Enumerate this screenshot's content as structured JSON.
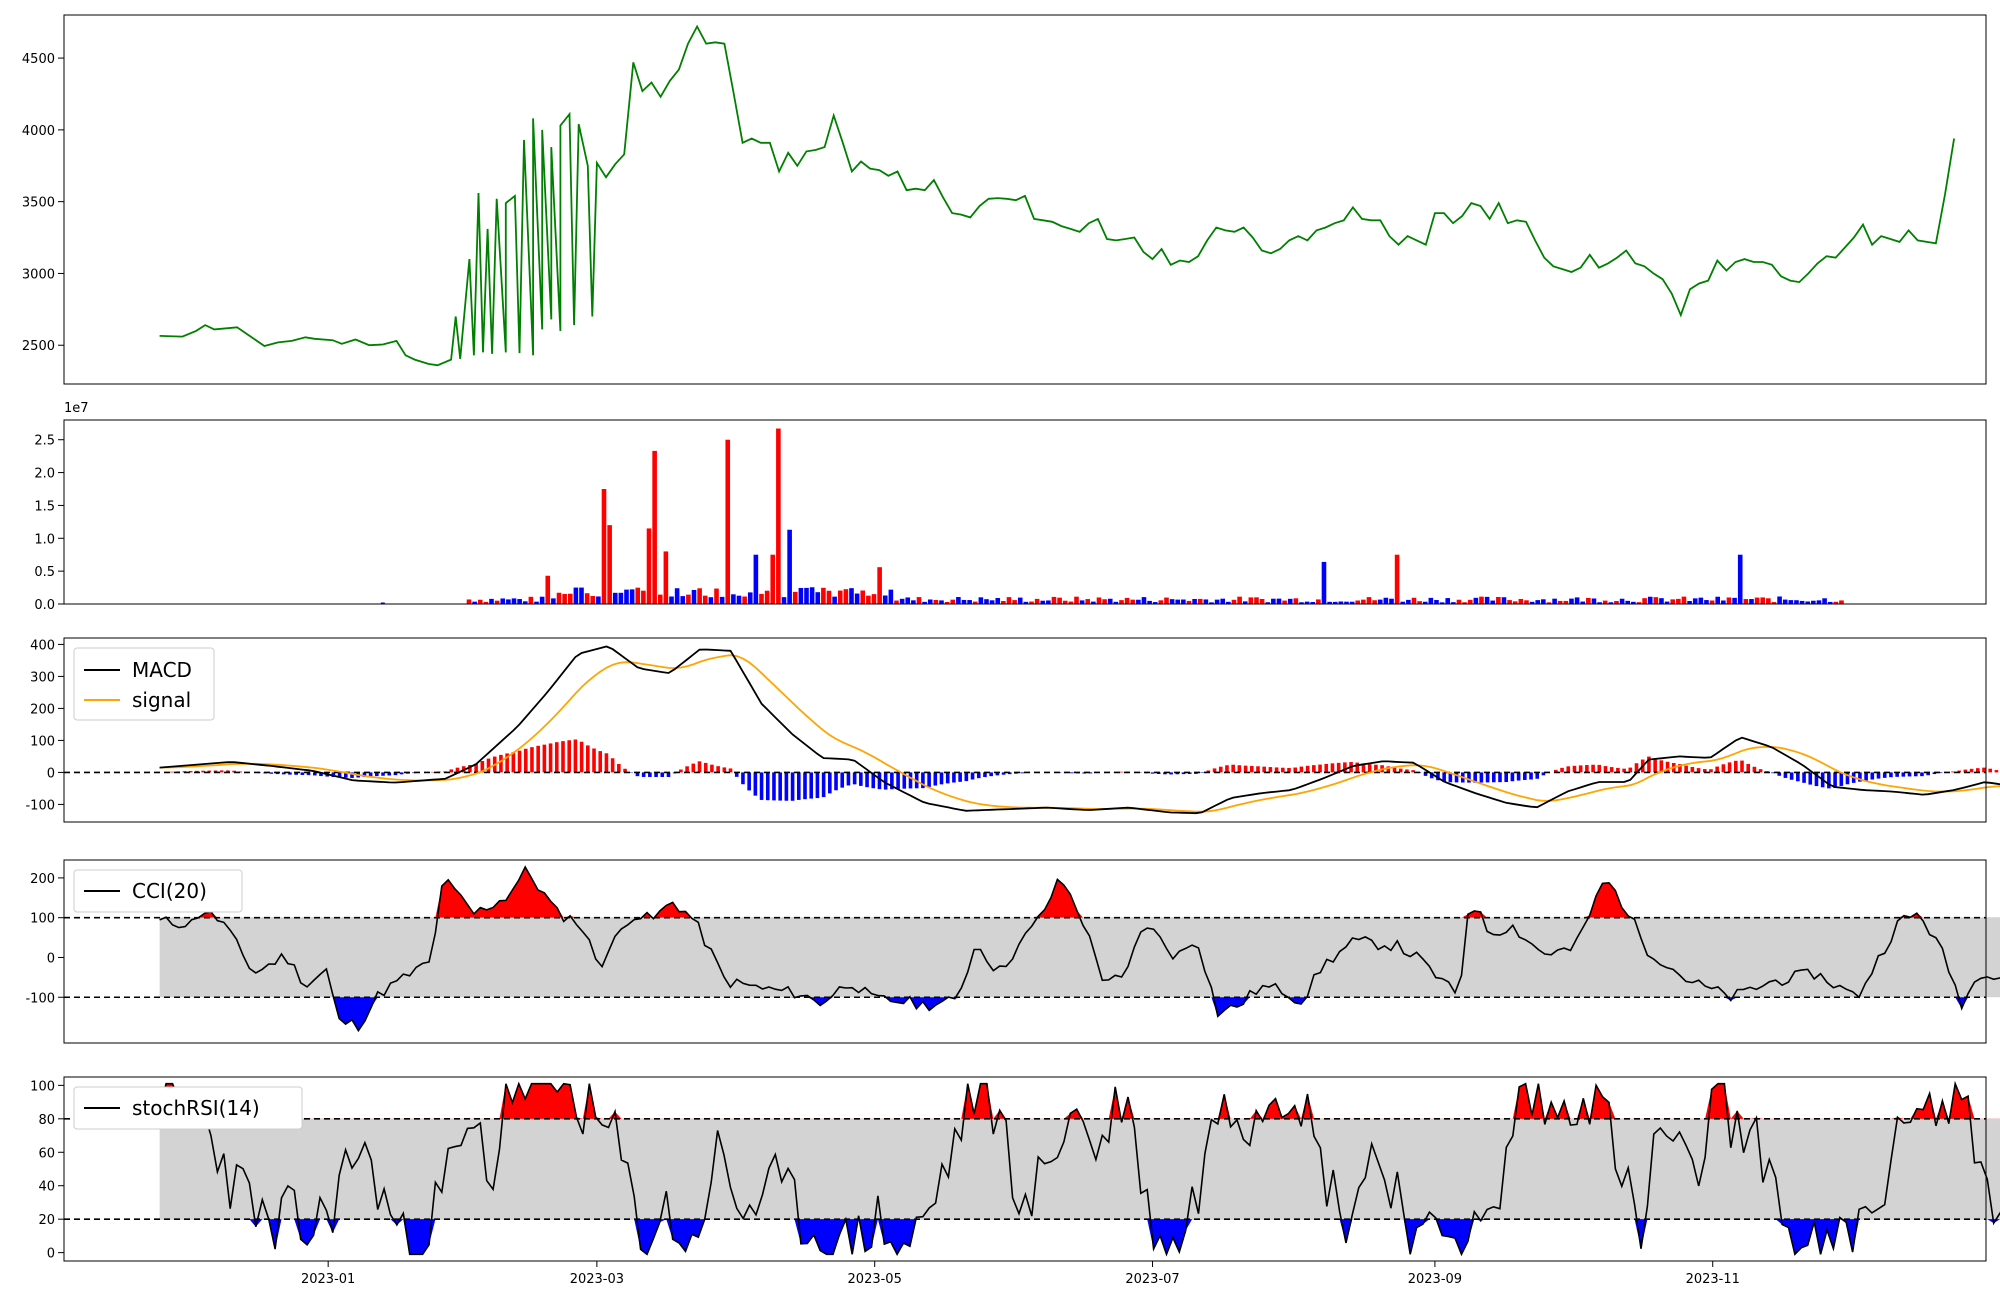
{
  "chart_data": {
    "type": "line",
    "date_ticks": [
      "2023-01",
      "2023-03",
      "2023-05",
      "2023-07",
      "2023-09",
      "2023-11"
    ],
    "x_range": [
      "2022-11-04",
      "2023-12-31"
    ],
    "panels": [
      {
        "id": "price",
        "type": "line",
        "color": "#008000",
        "ylim": [
          2230,
          4800
        ],
        "yticks": [
          2500,
          3000,
          3500,
          4000,
          4500
        ],
        "series": [
          {
            "name": "",
            "color": "#008000",
            "points": [
              [
                "2022-11-25",
                2565
              ],
              [
                "2022-11-30",
                2560
              ],
              [
                "2022-12-03",
                2600
              ],
              [
                "2022-12-05",
                2640
              ],
              [
                "2022-12-07",
                2610
              ],
              [
                "2022-12-12",
                2625
              ],
              [
                "2022-12-15",
                2560
              ],
              [
                "2022-12-18",
                2495
              ],
              [
                "2022-12-21",
                2520
              ],
              [
                "2022-12-24",
                2530
              ],
              [
                "2022-12-27",
                2555
              ],
              [
                "2022-12-29",
                2545
              ],
              [
                "2023-01-02",
                2535
              ],
              [
                "2023-01-04",
                2510
              ],
              [
                "2023-01-07",
                2540
              ],
              [
                "2023-01-10",
                2500
              ],
              [
                "2023-01-13",
                2505
              ],
              [
                "2023-01-16",
                2530
              ],
              [
                "2023-01-18",
                2430
              ],
              [
                "2023-01-20",
                2400
              ],
              [
                "2023-01-23",
                2370
              ],
              [
                "2023-01-25",
                2360
              ],
              [
                "2023-01-28",
                2400
              ],
              [
                "2023-01-30",
                2405
              ],
              [
                "2023-02-02",
                2430
              ],
              [
                "2023-02-04",
                2450
              ],
              [
                "2023-02-06",
                2440
              ],
              [
                "2023-02-09",
                2450
              ],
              [
                "2023-02-12",
                2445
              ],
              [
                "2023-02-15",
                2430
              ],
              [
                "2023-02-17",
                2610
              ],
              [
                "2023-02-19",
                2680
              ],
              [
                "2023-02-21",
                2600
              ],
              [
                "2023-02-24",
                2640
              ],
              [
                "2023-02-28",
                2700
              ],
              [
                "2023-01-29",
                2700
              ],
              [
                "2023-02-01",
                3100
              ],
              [
                "2023-02-03",
                3560
              ],
              [
                "2023-02-05",
                3310
              ],
              [
                "2023-02-07",
                3520
              ],
              [
                "2023-02-09",
                3490
              ],
              [
                "2023-02-11",
                3540
              ],
              [
                "2023-02-13",
                3930
              ],
              [
                "2023-02-15",
                4080
              ],
              [
                "2023-02-17",
                4000
              ],
              [
                "2023-02-19",
                3880
              ],
              [
                "2023-02-21",
                4030
              ],
              [
                "2023-02-23",
                4110
              ],
              [
                "2023-02-25",
                4040
              ],
              [
                "2023-02-27",
                3750
              ],
              [
                "2023-03-01",
                3770
              ],
              [
                "2023-03-03",
                3670
              ],
              [
                "2023-03-05",
                3760
              ],
              [
                "2023-03-07",
                3830
              ],
              [
                "2023-03-09",
                4470
              ],
              [
                "2023-03-11",
                4270
              ],
              [
                "2023-03-13",
                4330
              ],
              [
                "2023-03-15",
                4230
              ],
              [
                "2023-03-17",
                4340
              ],
              [
                "2023-03-19",
                4420
              ],
              [
                "2023-03-21",
                4600
              ],
              [
                "2023-03-23",
                4720
              ],
              [
                "2023-03-25",
                4600
              ],
              [
                "2023-03-27",
                4610
              ],
              [
                "2023-03-29",
                4600
              ],
              [
                "2023-03-31",
                4260
              ],
              [
                "2023-04-02",
                3910
              ],
              [
                "2023-04-04",
                3940
              ],
              [
                "2023-04-06",
                3910
              ],
              [
                "2023-04-08",
                3910
              ],
              [
                "2023-04-10",
                3710
              ],
              [
                "2023-04-12",
                3840
              ],
              [
                "2023-04-14",
                3750
              ],
              [
                "2023-04-16",
                3850
              ],
              [
                "2023-04-18",
                3860
              ],
              [
                "2023-04-20",
                3880
              ],
              [
                "2023-04-22",
                4100
              ],
              [
                "2023-04-24",
                3910
              ],
              [
                "2023-04-26",
                3710
              ],
              [
                "2023-04-28",
                3780
              ],
              [
                "2023-04-30",
                3730
              ],
              [
                "2023-05-02",
                3720
              ],
              [
                "2023-05-04",
                3680
              ],
              [
                "2023-05-06",
                3710
              ],
              [
                "2023-05-08",
                3580
              ],
              [
                "2023-05-10",
                3590
              ],
              [
                "2023-05-12",
                3580
              ],
              [
                "2023-05-14",
                3650
              ],
              [
                "2023-05-16",
                3530
              ],
              [
                "2023-05-18",
                3420
              ],
              [
                "2023-05-20",
                3410
              ],
              [
                "2023-05-22",
                3390
              ],
              [
                "2023-05-24",
                3470
              ],
              [
                "2023-05-26",
                3520
              ],
              [
                "2023-05-28",
                3525
              ],
              [
                "2023-05-30",
                3520
              ],
              [
                "2023-06-01",
                3510
              ],
              [
                "2023-06-03",
                3540
              ],
              [
                "2023-06-05",
                3380
              ],
              [
                "2023-06-07",
                3370
              ],
              [
                "2023-06-09",
                3360
              ],
              [
                "2023-06-11",
                3330
              ],
              [
                "2023-06-13",
                3310
              ],
              [
                "2023-06-15",
                3290
              ],
              [
                "2023-06-17",
                3350
              ],
              [
                "2023-06-19",
                3380
              ],
              [
                "2023-06-21",
                3240
              ],
              [
                "2023-06-23",
                3230
              ],
              [
                "2023-06-25",
                3240
              ],
              [
                "2023-06-27",
                3250
              ],
              [
                "2023-06-29",
                3150
              ],
              [
                "2023-07-01",
                3100
              ],
              [
                "2023-07-03",
                3170
              ],
              [
                "2023-07-05",
                3060
              ],
              [
                "2023-07-07",
                3090
              ],
              [
                "2023-07-09",
                3080
              ],
              [
                "2023-07-11",
                3120
              ],
              [
                "2023-07-13",
                3230
              ],
              [
                "2023-07-15",
                3320
              ],
              [
                "2023-07-17",
                3300
              ],
              [
                "2023-07-19",
                3290
              ],
              [
                "2023-07-21",
                3320
              ],
              [
                "2023-07-23",
                3250
              ],
              [
                "2023-07-25",
                3160
              ],
              [
                "2023-07-27",
                3140
              ],
              [
                "2023-07-29",
                3170
              ],
              [
                "2023-07-31",
                3230
              ],
              [
                "2023-08-02",
                3260
              ],
              [
                "2023-08-04",
                3230
              ],
              [
                "2023-08-06",
                3300
              ],
              [
                "2023-08-08",
                3320
              ],
              [
                "2023-08-10",
                3350
              ],
              [
                "2023-08-12",
                3370
              ],
              [
                "2023-08-14",
                3460
              ],
              [
                "2023-08-16",
                3380
              ],
              [
                "2023-08-18",
                3370
              ],
              [
                "2023-08-20",
                3370
              ],
              [
                "2023-08-22",
                3260
              ],
              [
                "2023-08-24",
                3200
              ],
              [
                "2023-08-26",
                3260
              ],
              [
                "2023-08-28",
                3230
              ],
              [
                "2023-08-30",
                3200
              ],
              [
                "2023-09-01",
                3420
              ],
              [
                "2023-09-03",
                3420
              ],
              [
                "2023-09-05",
                3350
              ],
              [
                "2023-09-07",
                3400
              ],
              [
                "2023-09-09",
                3490
              ],
              [
                "2023-09-11",
                3470
              ],
              [
                "2023-09-13",
                3380
              ],
              [
                "2023-09-15",
                3490
              ],
              [
                "2023-09-17",
                3350
              ],
              [
                "2023-09-19",
                3370
              ],
              [
                "2023-09-21",
                3360
              ],
              [
                "2023-09-23",
                3230
              ],
              [
                "2023-09-25",
                3110
              ],
              [
                "2023-09-27",
                3050
              ],
              [
                "2023-09-29",
                3030
              ],
              [
                "2023-10-01",
                3010
              ],
              [
                "2023-10-03",
                3040
              ],
              [
                "2023-10-05",
                3130
              ],
              [
                "2023-10-07",
                3040
              ],
              [
                "2023-10-09",
                3070
              ],
              [
                "2023-10-11",
                3110
              ],
              [
                "2023-10-13",
                3160
              ],
              [
                "2023-10-15",
                3070
              ],
              [
                "2023-10-17",
                3050
              ],
              [
                "2023-10-19",
                3000
              ],
              [
                "2023-10-21",
                2960
              ],
              [
                "2023-10-23",
                2860
              ],
              [
                "2023-10-25",
                2710
              ],
              [
                "2023-10-27",
                2890
              ],
              [
                "2023-10-29",
                2930
              ],
              [
                "2023-10-31",
                2950
              ],
              [
                "2023-11-02",
                3090
              ],
              [
                "2023-11-04",
                3020
              ],
              [
                "2023-11-06",
                3080
              ],
              [
                "2023-11-08",
                3100
              ],
              [
                "2023-11-10",
                3080
              ],
              [
                "2023-11-12",
                3080
              ],
              [
                "2023-11-14",
                3060
              ],
              [
                "2023-11-16",
                2980
              ],
              [
                "2023-11-18",
                2950
              ],
              [
                "2023-11-20",
                2940
              ],
              [
                "2023-11-22",
                3000
              ],
              [
                "2023-11-24",
                3070
              ],
              [
                "2023-11-26",
                3120
              ],
              [
                "2023-11-28",
                3110
              ],
              [
                "2023-11-30",
                3180
              ],
              [
                "2023-12-02",
                3250
              ],
              [
                "2023-12-04",
                3340
              ],
              [
                "2023-12-06",
                3200
              ],
              [
                "2023-12-08",
                3260
              ],
              [
                "2023-12-10",
                3240
              ],
              [
                "2023-12-12",
                3220
              ],
              [
                "2023-12-14",
                3300
              ],
              [
                "2023-12-16",
                3230
              ],
              [
                "2023-12-18",
                3220
              ],
              [
                "2023-12-20",
                3210
              ],
              [
                "2023-12-22",
                3550
              ],
              [
                "2023-12-24",
                3940
              ]
            ]
          }
        ]
      },
      {
        "id": "volume",
        "type": "bar",
        "ylim": [
          0,
          28000000
        ],
        "yticks": [
          0,
          5000000,
          10000000,
          15000000,
          20000000,
          25000000
        ],
        "ytick_labels": [
          "0.0",
          "0.5",
          "1.0",
          "1.5",
          "2.0",
          "2.5"
        ],
        "offset_label": "1e7",
        "up_color": "#ff0000",
        "down_color": "#0000ff",
        "bars": []
      },
      {
        "id": "macd",
        "type": "line",
        "ylim": [
          -155,
          420
        ],
        "yticks": [
          -100,
          0,
          100,
          200,
          300,
          400
        ],
        "ref_lines": [
          0
        ],
        "legend": [
          "MACD",
          "signal"
        ],
        "colors": {
          "macd": "#000000",
          "signal": "#ffa500",
          "hist_up": "#ff0000",
          "hist_down": "#0000ff"
        }
      },
      {
        "id": "cci",
        "type": "area",
        "ylim": [
          -215,
          245
        ],
        "yticks": [
          -100,
          0,
          100,
          200
        ],
        "ref_lines": [
          100,
          -100
        ],
        "legend": [
          "CCI(20)"
        ],
        "colors": {
          "line": "#000000",
          "band": "#d3d3d3",
          "over": "#ff0000",
          "under": "#0000ff"
        }
      },
      {
        "id": "stochrsi",
        "type": "area",
        "ylim": [
          -5,
          105
        ],
        "yticks": [
          0,
          20,
          40,
          60,
          80,
          100
        ],
        "ref_lines": [
          80,
          20
        ],
        "legend": [
          "stochRSI(14)"
        ],
        "colors": {
          "line": "#000000",
          "band": "#d3d3d3",
          "over": "#ff0000",
          "under": "#0000ff"
        }
      }
    ]
  }
}
